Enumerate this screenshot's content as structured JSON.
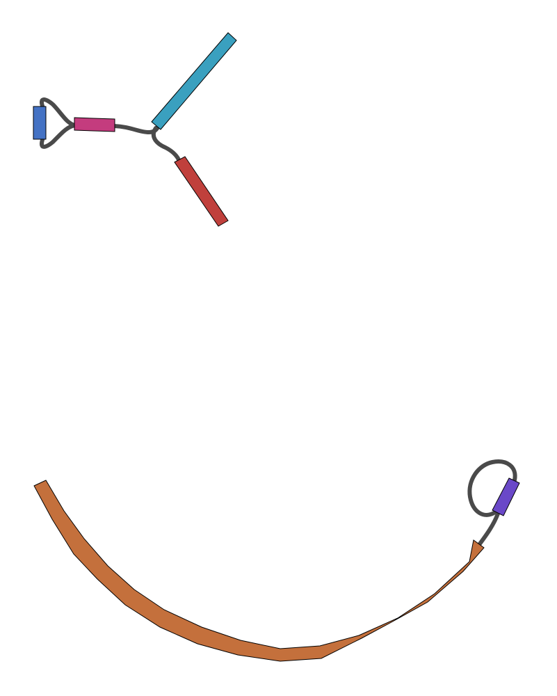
{
  "graph": {
    "link_color": "#4a4a4a",
    "segments": [
      {
        "id": "seg-blue",
        "color": "#4472c4"
      },
      {
        "id": "seg-magenta",
        "color": "#c43c7e"
      },
      {
        "id": "seg-cyan",
        "color": "#3aa0bf"
      },
      {
        "id": "seg-red",
        "color": "#c0403c"
      },
      {
        "id": "seg-purple",
        "color": "#6a48c8"
      },
      {
        "id": "seg-orange",
        "color": "#c4703c"
      }
    ]
  }
}
